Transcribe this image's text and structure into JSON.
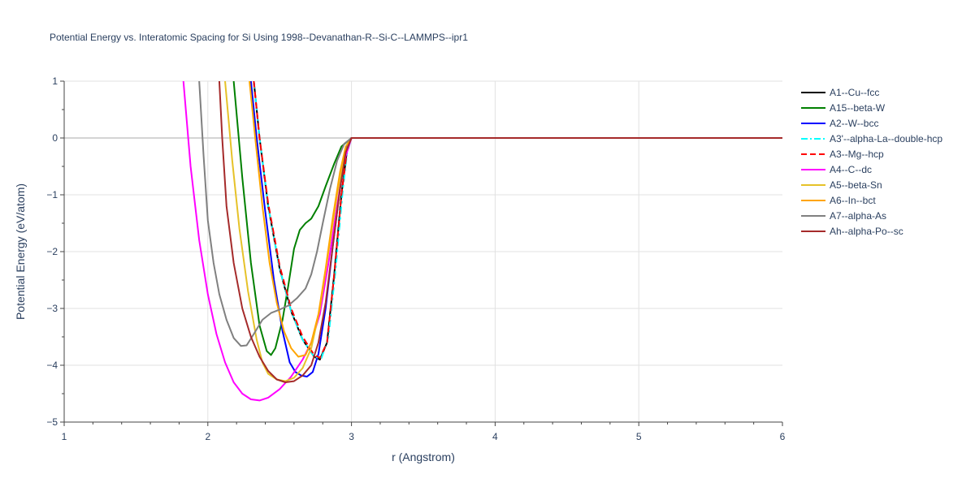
{
  "chart_data": {
    "type": "line",
    "title": "Potential Energy vs. Interatomic Spacing for Si Using 1998--Devanathan-R--Si-C--LAMMPS--ipr1",
    "xlabel": "r (Angstrom)",
    "ylabel": "Potential Energy (eV/atom)",
    "xlim": [
      1,
      6
    ],
    "ylim": [
      -5,
      1
    ],
    "xticks": [
      "1",
      "2",
      "3",
      "4",
      "5",
      "6"
    ],
    "yticks": [
      "1",
      "0",
      "−1",
      "−2",
      "−3",
      "−4",
      "−5"
    ],
    "grid": true,
    "legend_position": "right",
    "series": [
      {
        "name": "A1--Cu--fcc",
        "color": "#000000",
        "dash": "solid",
        "points": [
          [
            2.32,
            1.0
          ],
          [
            2.36,
            0.0
          ],
          [
            2.42,
            -1.2
          ],
          [
            2.5,
            -2.3
          ],
          [
            2.58,
            -3.05
          ],
          [
            2.66,
            -3.55
          ],
          [
            2.74,
            -3.85
          ],
          [
            2.78,
            -3.9
          ],
          [
            2.83,
            -3.6
          ],
          [
            2.88,
            -2.4
          ],
          [
            2.93,
            -1.0
          ],
          [
            2.97,
            -0.2
          ],
          [
            3.0,
            0.0
          ],
          [
            6.0,
            0.0
          ]
        ]
      },
      {
        "name": "A15--beta-W",
        "color": "#008000",
        "dash": "solid",
        "points": [
          [
            2.18,
            1.0
          ],
          [
            2.24,
            -0.7
          ],
          [
            2.3,
            -2.2
          ],
          [
            2.36,
            -3.3
          ],
          [
            2.41,
            -3.75
          ],
          [
            2.44,
            -3.82
          ],
          [
            2.47,
            -3.7
          ],
          [
            2.52,
            -3.2
          ],
          [
            2.56,
            -2.6
          ],
          [
            2.6,
            -1.95
          ],
          [
            2.64,
            -1.62
          ],
          [
            2.68,
            -1.5
          ],
          [
            2.72,
            -1.42
          ],
          [
            2.77,
            -1.2
          ],
          [
            2.82,
            -0.85
          ],
          [
            2.88,
            -0.45
          ],
          [
            2.93,
            -0.15
          ],
          [
            3.0,
            0.0
          ],
          [
            6.0,
            0.0
          ]
        ]
      },
      {
        "name": "A2--W--bcc",
        "color": "#0000ff",
        "dash": "solid",
        "points": [
          [
            2.3,
            1.0
          ],
          [
            2.34,
            0.0
          ],
          [
            2.4,
            -1.3
          ],
          [
            2.46,
            -2.5
          ],
          [
            2.52,
            -3.4
          ],
          [
            2.57,
            -3.95
          ],
          [
            2.61,
            -4.12
          ],
          [
            2.65,
            -4.18
          ],
          [
            2.69,
            -4.2
          ],
          [
            2.73,
            -4.12
          ],
          [
            2.77,
            -3.8
          ],
          [
            2.82,
            -3.0
          ],
          [
            2.87,
            -1.9
          ],
          [
            2.92,
            -0.9
          ],
          [
            2.96,
            -0.2
          ],
          [
            3.0,
            0.0
          ],
          [
            6.0,
            0.0
          ]
        ]
      },
      {
        "name": "A3'--alpha-La--double-hcp",
        "color": "#00ffff",
        "dash": "dashdot",
        "points": [
          [
            2.32,
            1.0
          ],
          [
            2.36,
            0.0
          ],
          [
            2.42,
            -1.2
          ],
          [
            2.5,
            -2.3
          ],
          [
            2.58,
            -3.05
          ],
          [
            2.66,
            -3.55
          ],
          [
            2.74,
            -3.85
          ],
          [
            2.79,
            -3.88
          ],
          [
            2.84,
            -3.5
          ],
          [
            2.89,
            -2.3
          ],
          [
            2.94,
            -0.9
          ],
          [
            2.97,
            -0.25
          ],
          [
            3.0,
            0.0
          ],
          [
            6.0,
            0.0
          ]
        ]
      },
      {
        "name": "A3--Mg--hcp",
        "color": "#ff0000",
        "dash": "dash",
        "points": [
          [
            2.32,
            1.0
          ],
          [
            2.36,
            0.0
          ],
          [
            2.42,
            -1.15
          ],
          [
            2.5,
            -2.25
          ],
          [
            2.58,
            -3.0
          ],
          [
            2.66,
            -3.5
          ],
          [
            2.74,
            -3.82
          ],
          [
            2.78,
            -3.87
          ],
          [
            2.83,
            -3.6
          ],
          [
            2.88,
            -2.4
          ],
          [
            2.93,
            -1.0
          ],
          [
            2.97,
            -0.2
          ],
          [
            3.0,
            0.0
          ],
          [
            6.0,
            0.0
          ]
        ]
      },
      {
        "name": "A4--C--dc",
        "color": "#ff00ff",
        "dash": "solid",
        "points": [
          [
            1.83,
            1.0
          ],
          [
            1.88,
            -0.5
          ],
          [
            1.94,
            -1.8
          ],
          [
            2.0,
            -2.75
          ],
          [
            2.06,
            -3.45
          ],
          [
            2.12,
            -3.95
          ],
          [
            2.18,
            -4.3
          ],
          [
            2.24,
            -4.5
          ],
          [
            2.3,
            -4.6
          ],
          [
            2.36,
            -4.62
          ],
          [
            2.42,
            -4.57
          ],
          [
            2.5,
            -4.42
          ],
          [
            2.58,
            -4.2
          ],
          [
            2.66,
            -3.9
          ],
          [
            2.72,
            -3.6
          ],
          [
            2.78,
            -3.1
          ],
          [
            2.84,
            -2.2
          ],
          [
            2.9,
            -1.2
          ],
          [
            2.95,
            -0.4
          ],
          [
            3.0,
            0.0
          ],
          [
            6.0,
            0.0
          ]
        ]
      },
      {
        "name": "A5--beta-Sn",
        "color": "#e6c229",
        "dash": "solid",
        "points": [
          [
            2.12,
            1.0
          ],
          [
            2.17,
            -0.4
          ],
          [
            2.22,
            -1.6
          ],
          [
            2.28,
            -2.7
          ],
          [
            2.34,
            -3.55
          ],
          [
            2.38,
            -3.95
          ],
          [
            2.42,
            -4.15
          ],
          [
            2.48,
            -4.25
          ],
          [
            2.54,
            -4.28
          ],
          [
            2.6,
            -4.22
          ],
          [
            2.66,
            -4.05
          ],
          [
            2.72,
            -3.7
          ],
          [
            2.78,
            -3.0
          ],
          [
            2.84,
            -2.0
          ],
          [
            2.9,
            -1.0
          ],
          [
            2.95,
            -0.3
          ],
          [
            3.0,
            0.0
          ],
          [
            6.0,
            0.0
          ]
        ]
      },
      {
        "name": "A6--In--bct",
        "color": "#ffa500",
        "dash": "solid",
        "points": [
          [
            2.29,
            1.0
          ],
          [
            2.33,
            0.0
          ],
          [
            2.38,
            -1.2
          ],
          [
            2.43,
            -2.2
          ],
          [
            2.48,
            -2.9
          ],
          [
            2.53,
            -3.4
          ],
          [
            2.58,
            -3.7
          ],
          [
            2.63,
            -3.85
          ],
          [
            2.68,
            -3.82
          ],
          [
            2.72,
            -3.6
          ],
          [
            2.77,
            -3.1
          ],
          [
            2.82,
            -2.3
          ],
          [
            2.87,
            -1.4
          ],
          [
            2.92,
            -0.6
          ],
          [
            2.96,
            -0.15
          ],
          [
            3.0,
            0.0
          ],
          [
            6.0,
            0.0
          ]
        ]
      },
      {
        "name": "A7--alpha-As",
        "color": "#808080",
        "dash": "solid",
        "points": [
          [
            1.94,
            1.0
          ],
          [
            1.97,
            -0.3
          ],
          [
            2.0,
            -1.45
          ],
          [
            2.04,
            -2.2
          ],
          [
            2.08,
            -2.75
          ],
          [
            2.13,
            -3.2
          ],
          [
            2.18,
            -3.52
          ],
          [
            2.23,
            -3.66
          ],
          [
            2.27,
            -3.65
          ],
          [
            2.32,
            -3.45
          ],
          [
            2.38,
            -3.2
          ],
          [
            2.44,
            -3.08
          ],
          [
            2.5,
            -3.02
          ],
          [
            2.56,
            -2.95
          ],
          [
            2.62,
            -2.82
          ],
          [
            2.68,
            -2.65
          ],
          [
            2.72,
            -2.4
          ],
          [
            2.76,
            -2.0
          ],
          [
            2.8,
            -1.5
          ],
          [
            2.85,
            -0.9
          ],
          [
            2.9,
            -0.4
          ],
          [
            2.95,
            -0.1
          ],
          [
            3.0,
            0.0
          ],
          [
            6.0,
            0.0
          ]
        ]
      },
      {
        "name": "Ah--alpha-Po--sc",
        "color": "#a52a2a",
        "dash": "solid",
        "points": [
          [
            2.08,
            1.0
          ],
          [
            2.1,
            0.0
          ],
          [
            2.13,
            -1.2
          ],
          [
            2.18,
            -2.2
          ],
          [
            2.24,
            -3.0
          ],
          [
            2.3,
            -3.5
          ],
          [
            2.36,
            -3.85
          ],
          [
            2.42,
            -4.1
          ],
          [
            2.48,
            -4.25
          ],
          [
            2.54,
            -4.3
          ],
          [
            2.6,
            -4.28
          ],
          [
            2.66,
            -4.18
          ],
          [
            2.72,
            -4.0
          ],
          [
            2.77,
            -3.6
          ],
          [
            2.82,
            -2.9
          ],
          [
            2.87,
            -1.9
          ],
          [
            2.92,
            -0.9
          ],
          [
            2.96,
            -0.25
          ],
          [
            3.0,
            0.0
          ],
          [
            6.0,
            0.0
          ]
        ]
      }
    ]
  }
}
